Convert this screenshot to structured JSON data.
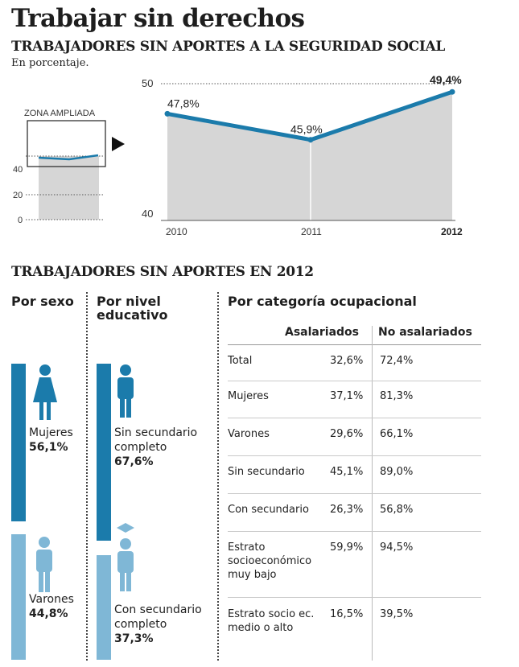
{
  "title": "Trabajar sin derechos",
  "subtitle": "TRABAJADORES SIN APORTES A LA SEGURIDAD SOCIAL",
  "unit": "En porcentaje.",
  "chart_data": {
    "type": "line",
    "x": [
      "2010",
      "2011",
      "2012"
    ],
    "values": [
      47.8,
      45.9,
      49.4
    ],
    "value_labels": [
      "47,8%",
      "45,9%",
      "49,4%"
    ],
    "ylim": [
      40,
      50
    ],
    "y_ticks": [
      "50",
      "40"
    ],
    "inset": {
      "label": "ZONA AMPLIADA",
      "ylim": [
        0,
        50
      ],
      "y_ticks": [
        "40",
        "20",
        "0"
      ]
    }
  },
  "section2_title": "TRABAJADORES SIN APORTES EN 2012",
  "por_sexo": {
    "heading": "Por sexo",
    "items": [
      {
        "label": "Mujeres",
        "value": "56,1%"
      },
      {
        "label": "Varones",
        "value": "44,8%"
      }
    ]
  },
  "por_nivel": {
    "heading_1": "Por nivel",
    "heading_2": "educativo",
    "items": [
      {
        "label_1": "Sin secundario",
        "label_2": "completo",
        "value": "67,6%"
      },
      {
        "label_1": "Con secundario",
        "label_2": "completo",
        "value": "37,3%"
      }
    ]
  },
  "por_categoria": {
    "heading": "Por categoría ocupacional",
    "col1": "Asalariados",
    "col2": "No asalariados",
    "rows": [
      {
        "name_1": "Total",
        "name_2": "",
        "name_3": "",
        "asal": "32,6%",
        "no_asal": "72,4%"
      },
      {
        "name_1": "Mujeres",
        "name_2": "",
        "name_3": "",
        "asal": "37,1%",
        "no_asal": "81,3%"
      },
      {
        "name_1": "Varones",
        "name_2": "",
        "name_3": "",
        "asal": "29,6%",
        "no_asal": "66,1%"
      },
      {
        "name_1": "Sin secundario",
        "name_2": "",
        "name_3": "",
        "asal": "45,1%",
        "no_asal": "89,0%"
      },
      {
        "name_1": "Con secundario",
        "name_2": "",
        "name_3": "",
        "asal": "26,3%",
        "no_asal": "56,8%"
      },
      {
        "name_1": "Estrato",
        "name_2": "socioeconómico",
        "name_3": "muy bajo",
        "asal": "59,9%",
        "no_asal": "94,5%"
      },
      {
        "name_1": "Estrato socio ec.",
        "name_2": "medio o alto",
        "name_3": "",
        "asal": "16,5%",
        "no_asal": "39,5%"
      }
    ]
  },
  "colors": {
    "line": "#1b7bab",
    "dark_bar": "#1b7bab",
    "light_bar": "#7fb7d6",
    "area": "#d6d6d6"
  },
  "icons": [
    "female-person-icon",
    "male-person-icon",
    "student-icon",
    "graduate-icon",
    "arrow-right-icon"
  ]
}
